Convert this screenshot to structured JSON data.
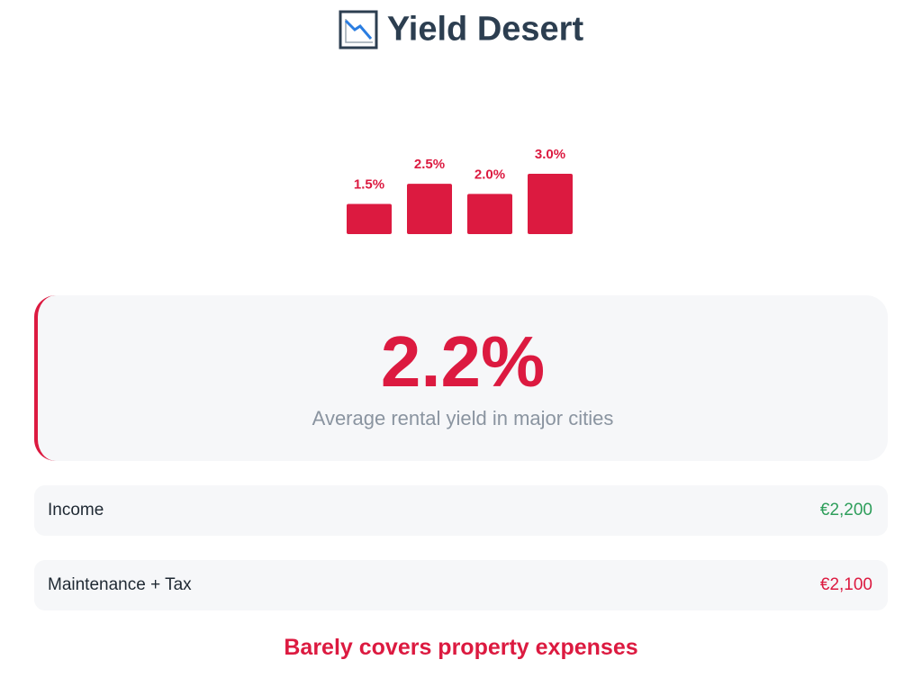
{
  "header": {
    "title": "Yield Desert"
  },
  "chart_data": {
    "type": "bar",
    "categories": [
      null,
      null,
      null,
      null
    ],
    "values": [
      1.5,
      2.5,
      2.0,
      3.0
    ],
    "value_labels": [
      "1.5%",
      "2.5%",
      "2.0%",
      "3.0%"
    ],
    "color": "#dc1a40"
  },
  "highlight": {
    "value": "2.2%",
    "caption": "Average rental yield in major cities"
  },
  "rows": [
    {
      "label": "Income",
      "amount": "€2,200",
      "color": "#2e9e5b"
    },
    {
      "label": "Maintenance + Tax",
      "amount": "€2,100",
      "color": "#dc1a40"
    }
  ],
  "footer": "Barely covers property expenses"
}
